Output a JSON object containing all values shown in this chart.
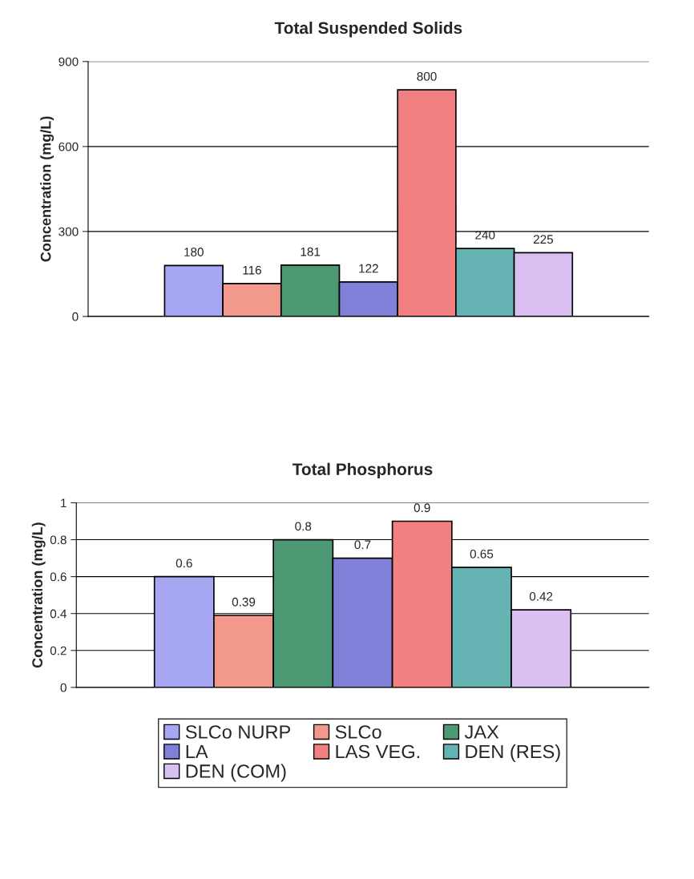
{
  "chart_data": [
    {
      "type": "bar",
      "title": "Total Suspended Solids",
      "ylabel": "Concentration (mg/L)",
      "categories": [
        null
      ],
      "ylim": [
        0,
        900
      ],
      "yticks": [
        0,
        300,
        600,
        900
      ],
      "grid": "y",
      "data_labels": true,
      "series": [
        {
          "color": "#a6a6f2",
          "values": [
            180
          ]
        },
        {
          "color": "#f2998c",
          "values": [
            116
          ]
        },
        {
          "color": "#4d9973",
          "values": [
            181
          ]
        },
        {
          "color": "#8080d9",
          "values": [
            122
          ]
        },
        {
          "color": "#f28080",
          "values": [
            800
          ]
        },
        {
          "color": "#66b3b3",
          "values": [
            240
          ]
        },
        {
          "color": "#d9bff2",
          "values": [
            225
          ]
        }
      ]
    },
    {
      "type": "bar",
      "title": "Total Phosphorus",
      "ylabel": "Concentration (mg/L)",
      "categories": [
        null
      ],
      "ylim": [
        0,
        1
      ],
      "yticks": [
        0,
        0.2,
        0.4,
        0.6,
        0.8,
        1
      ],
      "grid": "y",
      "data_labels": true,
      "legend": "bottom",
      "series": [
        {
          "name": "SLCo NURP",
          "color": "#a6a6f2",
          "values": [
            0.6
          ]
        },
        {
          "name": "SLCo",
          "color": "#f2998c",
          "values": [
            0.39
          ]
        },
        {
          "name": "JAX",
          "color": "#4d9973",
          "values": [
            0.8
          ]
        },
        {
          "name": "LA",
          "color": "#8080d9",
          "values": [
            0.7
          ]
        },
        {
          "name": "LAS VEG.",
          "color": "#f28080",
          "values": [
            0.9
          ]
        },
        {
          "name": "DEN (RES)",
          "color": "#66b3b3",
          "values": [
            0.65
          ]
        },
        {
          "name": "DEN (COM)",
          "color": "#d9bff2",
          "values": [
            0.42
          ]
        }
      ]
    }
  ]
}
